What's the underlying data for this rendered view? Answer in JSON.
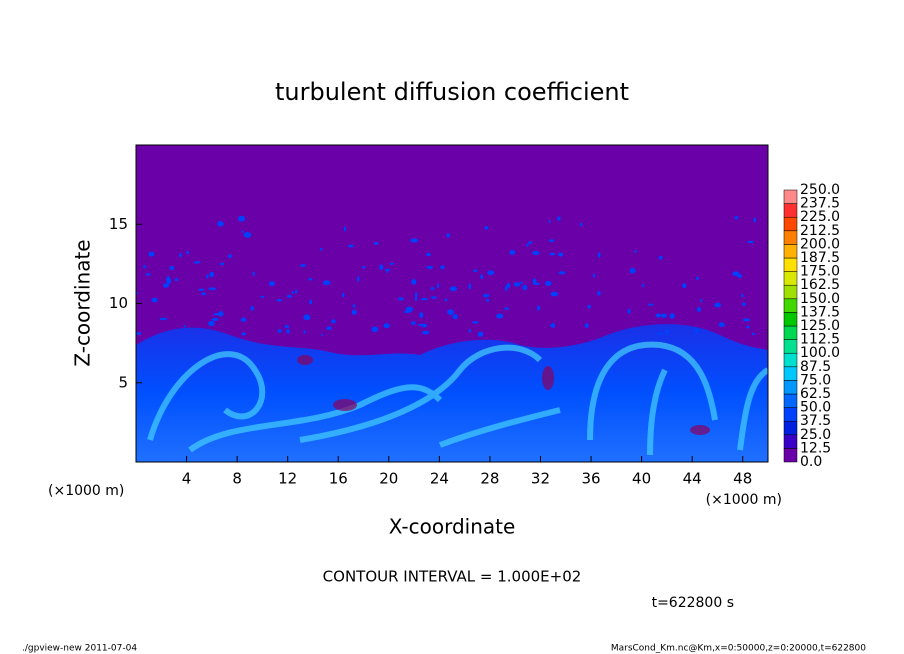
{
  "chart_data": {
    "type": "contour",
    "title": "turbulent diffusion coefficient",
    "x_label": "X-coordinate",
    "y_label": "Z-coordinate",
    "x_unit": "(×1000 m)",
    "y_unit": "(×1000 m)",
    "xlim": [
      0,
      50
    ],
    "ylim": [
      0,
      20
    ],
    "xticks": [
      4,
      8,
      12,
      16,
      20,
      24,
      28,
      32,
      36,
      40,
      44,
      48
    ],
    "yticks": [
      5,
      10,
      15
    ],
    "colorbar": {
      "levels": [
        {
          "value": 0,
          "label": "0.0"
        },
        {
          "value": 12.5,
          "label": "12.5"
        },
        {
          "value": 25,
          "label": "25.0"
        },
        {
          "value": 37.5,
          "label": "37.5"
        },
        {
          "value": 50,
          "label": "50.0"
        },
        {
          "value": 62.5,
          "label": "62.5"
        },
        {
          "value": 75,
          "label": "75.0"
        },
        {
          "value": 87.5,
          "label": "87.5"
        },
        {
          "value": 100,
          "label": "100.0"
        },
        {
          "value": 112.5,
          "label": "112.5"
        },
        {
          "value": 125,
          "label": "125.0"
        },
        {
          "value": 137.5,
          "label": "137.5"
        },
        {
          "value": 150,
          "label": "150.0"
        },
        {
          "value": 162.5,
          "label": "162.5"
        },
        {
          "value": 175,
          "label": "175.0"
        },
        {
          "value": 187.5,
          "label": "187.5"
        },
        {
          "value": 200,
          "label": "200.0"
        },
        {
          "value": 212.5,
          "label": "212.5"
        },
        {
          "value": 225,
          "label": "225.0"
        },
        {
          "value": 237.5,
          "label": "237.5"
        },
        {
          "value": 250,
          "label": "250.0"
        }
      ],
      "colors": [
        "#6a00a8",
        "#3a00c8",
        "#0020e0",
        "#0040ff",
        "#0068ff",
        "#0098ff",
        "#00c8ff",
        "#00e0d0",
        "#00e090",
        "#00d850",
        "#00c800",
        "#40d800",
        "#a0e000",
        "#d8e800",
        "#ffe000",
        "#ffb000",
        "#ff8000",
        "#ff4800",
        "#ff3030",
        "#ff8888"
      ]
    },
    "contour_interval": "CONTOUR INTERVAL = 1.000E+02",
    "time_label": "t=622800 s",
    "footer_left": "./gpview-new  2011-07-04",
    "footer_right": "MarsCond_Km.nc@Km,x=0:50000,z=0:20000,t=622800"
  }
}
